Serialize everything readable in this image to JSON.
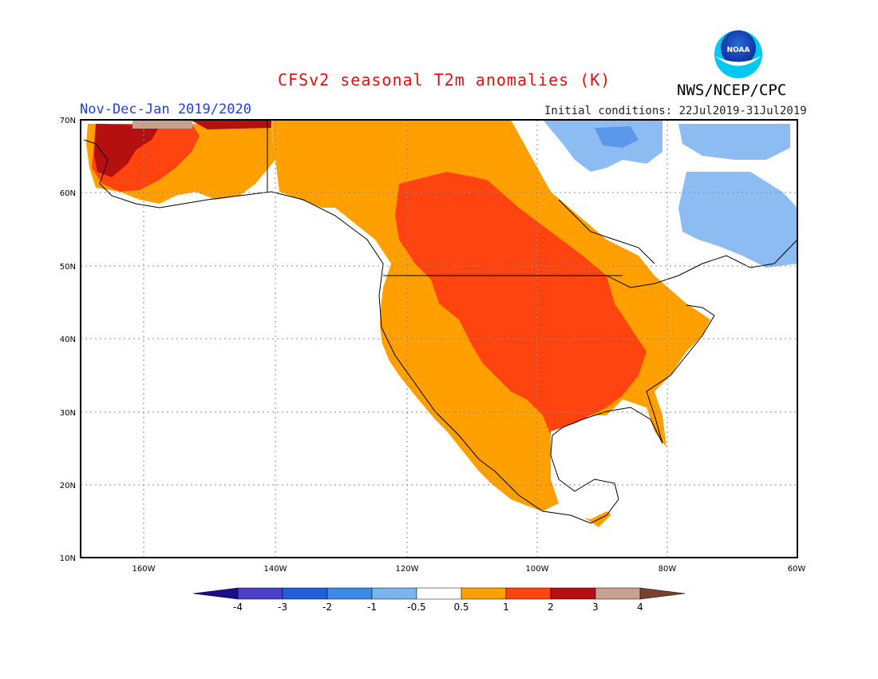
{
  "header": {
    "title": "CFSv2 seasonal T2m anomalies (K)",
    "agency": "NWS/NCEP/CPC",
    "period": "Nov-Dec-Jan 2019/2020",
    "initial_conditions": "Initial conditions: 22Jul2019-31Jul2019",
    "logo_text": "NOAA"
  },
  "axes": {
    "lat_labels": [
      "70N",
      "60N",
      "50N",
      "40N",
      "30N",
      "20N",
      "10N"
    ],
    "lon_labels": [
      "160W",
      "140W",
      "120W",
      "100W",
      "80W",
      "60W"
    ]
  },
  "colorbar": {
    "levels": [
      "-4",
      "-3",
      "-2",
      "-1",
      "-0.5",
      "0.5",
      "1",
      "2",
      "3",
      "4"
    ],
    "colors": [
      "#1c0d8c",
      "#4b3ec8",
      "#2160d8",
      "#3c8ae8",
      "#78b4f0",
      "#ffffff",
      "#ffa000",
      "#ff4410",
      "#b41010",
      "#c8a090",
      "#7a4030"
    ]
  },
  "legend_colors": {
    "light_blue": "#8cbcf2",
    "mid_blue": "#5c98ea",
    "orange": "#ffa000",
    "red_orange": "#ff4410",
    "dark_red": "#b41010",
    "tan": "#c8a090"
  }
}
